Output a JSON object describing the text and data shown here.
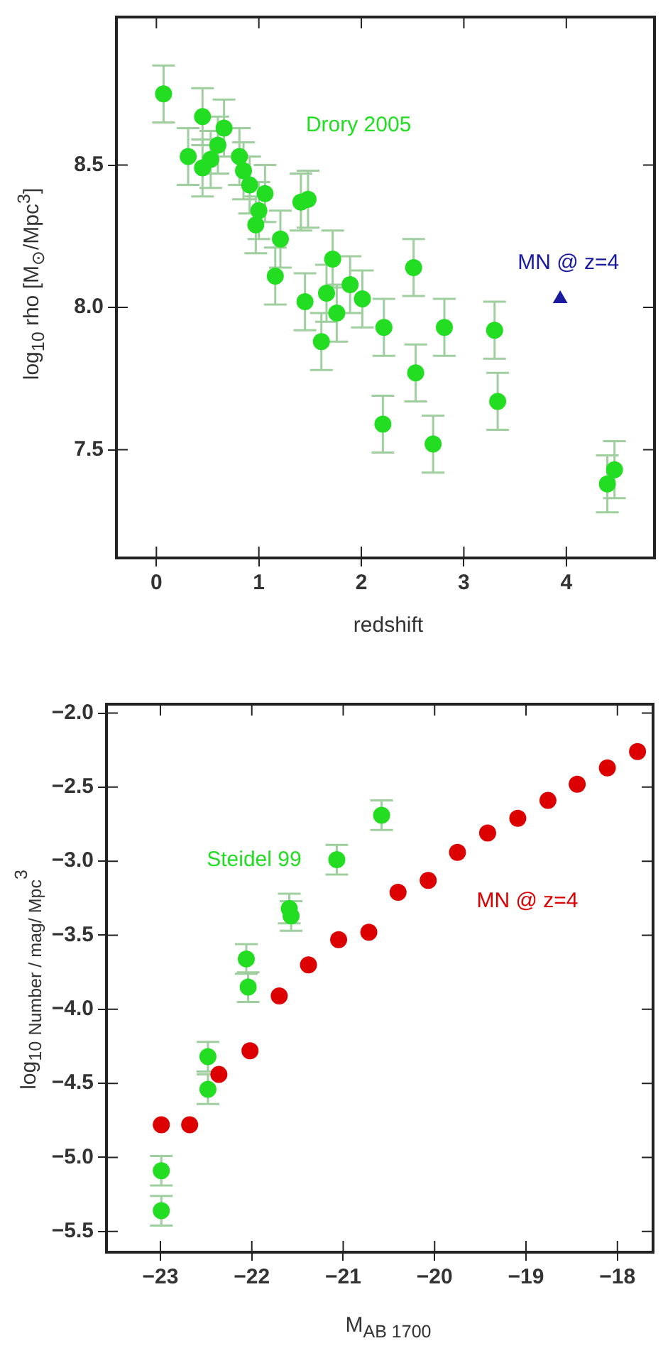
{
  "chart_data": [
    {
      "type": "scatter",
      "xlabel": "redshift",
      "ylabel": "log$_{10}$ rho [M$_{⊙}$/Mpc$^{3}$]",
      "xlim": [
        -0.39,
        4.86
      ],
      "ylim": [
        7.12,
        9.02
      ],
      "xticks": [
        0,
        1,
        2,
        3,
        4
      ],
      "yticks": [
        7.5,
        {
          "value": 8,
          "label": "8.0"
        },
        8.5
      ],
      "grid": false,
      "legend": false,
      "marker": "circle",
      "series": [
        {
          "name": "Drory 2005",
          "color": "#22dd22",
          "x": [
            0.07,
            0.31,
            0.45,
            0.45,
            0.53,
            0.6,
            0.66,
            0.81,
            0.85,
            0.91,
            1.06,
            1.0,
            0.97,
            1.21,
            1.16,
            1.41,
            1.48,
            1.45,
            1.72,
            1.66,
            1.76,
            1.89,
            2.01,
            1.61,
            2.22,
            2.51,
            2.81,
            3.3,
            2.21,
            2.53,
            2.7,
            3.33,
            4.4,
            4.47
          ],
          "values": [
            8.75,
            8.53,
            8.67,
            8.49,
            8.52,
            8.57,
            8.63,
            8.53,
            8.48,
            8.43,
            8.4,
            8.34,
            8.29,
            8.24,
            8.11,
            8.37,
            8.38,
            8.02,
            8.17,
            8.05,
            7.98,
            8.08,
            8.03,
            7.88,
            7.93,
            8.14,
            7.93,
            7.92,
            7.59,
            7.77,
            7.52,
            7.67,
            7.38,
            7.43
          ],
          "errors": [
            0.1,
            0.1,
            0.1,
            0.1,
            0.1,
            0.1,
            0.1,
            0.1,
            0.1,
            0.1,
            0.1,
            0.1,
            0.1,
            0.1,
            0.1,
            0.1,
            0.1,
            0.1,
            0.1,
            0.1,
            0.1,
            0.1,
            0.1,
            0.1,
            0.1,
            0.1,
            0.1,
            0.1,
            0.1,
            0.1,
            0.1,
            0.1,
            0.1,
            0.1
          ]
        },
        {
          "name": "MN @ z=4",
          "color": "#1a1aa0",
          "marker": "triangle",
          "x": [
            3.94
          ],
          "values": [
            8.03
          ]
        }
      ]
    },
    {
      "type": "scatter",
      "xlabel": "M$_{AB 1700}$",
      "ylabel": "log$_{10}$ $_{Number / mag/ Mpc}$$^{3}$",
      "xlim": [
        -23.59,
        -17.61
      ],
      "ylim": [
        -5.64,
        -1.94
      ],
      "xticks": [
        {
          "value": -23,
          "label": "−23"
        },
        {
          "value": -22,
          "label": "−22"
        },
        {
          "value": -21,
          "label": "−21"
        },
        {
          "value": -20,
          "label": "−20"
        },
        {
          "value": -19,
          "label": "−19"
        },
        {
          "value": -18,
          "label": "−18"
        }
      ],
      "yticks": [
        {
          "value": -5.5,
          "label": "−5.5"
        },
        {
          "value": -5,
          "label": "−5.0"
        },
        {
          "value": -4.5,
          "label": "−4.5"
        },
        {
          "value": -4,
          "label": "−4.0"
        },
        {
          "value": -3.5,
          "label": "−3.5"
        },
        {
          "value": -3,
          "label": "−3.0"
        },
        {
          "value": -2.5,
          "label": "−2.5"
        },
        {
          "value": -2,
          "label": "−2.0"
        }
      ],
      "grid": false,
      "legend": false,
      "marker": "circle",
      "series": [
        {
          "name": "Steidel 99",
          "color": "#22dd22",
          "x": [
            -22.06,
            -22.04,
            -21.59,
            -21.57,
            -21.07,
            -20.58,
            -22.48,
            -22.48,
            -22.99,
            -22.99
          ],
          "values": [
            -3.66,
            -3.85,
            -3.32,
            -3.37,
            -2.99,
            -2.69,
            -4.32,
            -4.54,
            -5.09,
            -5.36
          ],
          "errors": [
            0.1,
            0.1,
            0.1,
            0.1,
            0.1,
            0.1,
            0.1,
            0.1,
            0.1,
            0.1
          ]
        },
        {
          "name": "MN @ z=4",
          "color": "#dd0000",
          "x": [
            -17.78,
            -18.11,
            -18.44,
            -18.76,
            -19.09,
            -19.42,
            -19.75,
            -20.07,
            -20.4,
            -20.72,
            -21.05,
            -21.38,
            -21.7,
            -22.02,
            -22.36,
            -22.68,
            -22.99
          ],
          "values": [
            -2.26,
            -2.37,
            -2.48,
            -2.59,
            -2.71,
            -2.81,
            -2.94,
            -3.13,
            -3.21,
            -3.48,
            -3.53,
            -3.7,
            -3.91,
            -4.28,
            -4.44,
            -4.78,
            -4.78
          ]
        }
      ]
    }
  ]
}
